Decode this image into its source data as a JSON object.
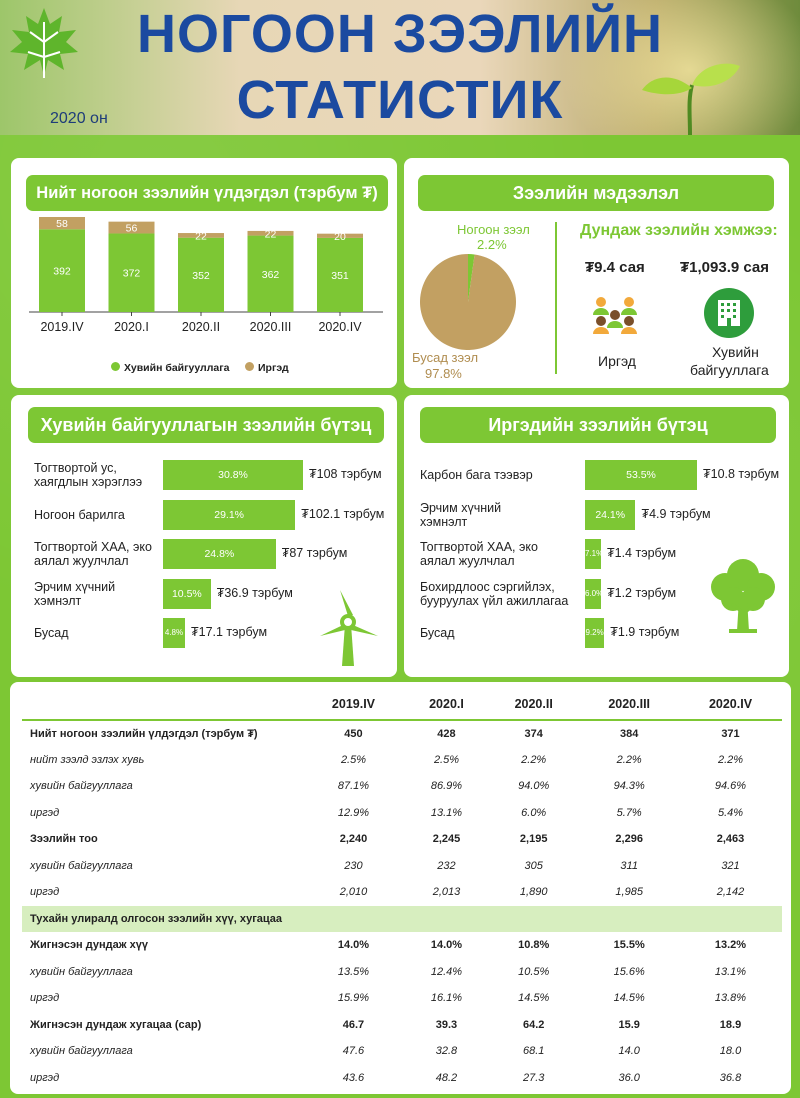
{
  "header": {
    "title_line1": "НОГООН ЗЭЭЛИЙН",
    "title_line2": "СТАТИСТИК",
    "year": "2020 он"
  },
  "colors": {
    "green": "#7dc734",
    "tan": "#c2a062",
    "title_blue": "#1b4aa0"
  },
  "icons": {
    "logo": "maple-leaf-icon",
    "sprout": "sprout-icon",
    "people": "people-icon",
    "building": "building-icon",
    "wind": "wind-turbine-icon",
    "tree": "tree-icon"
  },
  "balance": {
    "title": "Нийт ногоон зээлийн үлдэгдэл (тэрбум ₮)",
    "legend_business": "Хувийн байгууллага",
    "legend_citizen": "Иргэд"
  },
  "loan_info": {
    "title": "Зээлийн мэдээлэл",
    "green_label": "Ногоон зээл",
    "green_pct": "2.2%",
    "other_label": "Бусад зээл",
    "other_pct": "97.8%",
    "avg_title": "Дундаж зээлийн хэмжээ:",
    "citizen_amount": "₮9.4 сая",
    "business_amount": "₮1,093.9 сая",
    "citizen_label": "Иргэд",
    "business_label_1": "Хувийн",
    "business_label_2": "байгууллага"
  },
  "business_structure": {
    "title": "Хувийн байгууллагын зээлийн бүтэц",
    "items": [
      {
        "label1": "Тогтвортой ус,",
        "label2": "хаягдлын хэрэглээ",
        "pct": "30.8%",
        "share": 30.8,
        "amount": "₮108 тэрбум"
      },
      {
        "label1": "Ногоон барилга",
        "label2": "",
        "pct": "29.1%",
        "share": 29.1,
        "amount": "₮102.1 тэрбум"
      },
      {
        "label1": "Тогтвортой ХАА, эко",
        "label2": "аялал жуулчлал",
        "pct": "24.8%",
        "share": 24.8,
        "amount": "₮87 тэрбум"
      },
      {
        "label1": "Эрчим хүчний",
        "label2": "хэмнэлт",
        "pct": "10.5%",
        "share": 10.5,
        "amount": "₮36.9 тэрбум"
      },
      {
        "label1": "Бусад",
        "label2": "",
        "pct": "4.8%",
        "share": 4.8,
        "amount": "₮17.1 тэрбум"
      }
    ]
  },
  "citizen_structure": {
    "title": "Иргэдийн зээлийн бүтэц",
    "items": [
      {
        "label1": "Карбон бага тээвэр",
        "label2": "",
        "pct": "53.5%",
        "share": 53.5,
        "amount": "₮10.8 тэрбум"
      },
      {
        "label1": "Эрчим хүчний",
        "label2": "хэмнэлт",
        "pct": "24.1%",
        "share": 24.1,
        "amount": "₮4.9 тэрбум"
      },
      {
        "label1": "Тогтвортой ХАА, эко",
        "label2": "аялал жуулчлал",
        "pct": "7.1%",
        "share": 7.1,
        "amount": "₮1.4 тэрбум"
      },
      {
        "label1": "Бохирдлоос сэргийлэх,",
        "label2": "бууруулах үйл ажиллагаа",
        "pct": "6.0%",
        "share": 6.0,
        "amount": "₮1.2 тэрбум"
      },
      {
        "label1": "Бусад",
        "label2": "",
        "pct": "9.2%",
        "share": 9.2,
        "amount": "₮1.9 тэрбум"
      }
    ]
  },
  "table": {
    "columns": [
      "",
      "2019.IV",
      "2020.I",
      "2020.II",
      "2020.III",
      "2020.IV"
    ],
    "rows": [
      {
        "style": "b",
        "cells": [
          "Нийт ногоон зээлийн үлдэгдэл (тэрбум ₮)",
          "450",
          "428",
          "374",
          "384",
          "371"
        ]
      },
      {
        "style": "i",
        "cells": [
          "нийт зээлд эзлэх хувь",
          "2.5%",
          "2.5%",
          "2.2%",
          "2.2%",
          "2.2%"
        ]
      },
      {
        "style": "i",
        "cells": [
          "хувийн байгууллага",
          "87.1%",
          "86.9%",
          "94.0%",
          "94.3%",
          "94.6%"
        ]
      },
      {
        "style": "i",
        "cells": [
          "иргэд",
          "12.9%",
          "13.1%",
          "6.0%",
          "5.7%",
          "5.4%"
        ]
      },
      {
        "style": "b",
        "cells": [
          "Зээлийн тоо",
          "2,240",
          "2,245",
          "2,195",
          "2,296",
          "2,463"
        ]
      },
      {
        "style": "i",
        "cells": [
          "хувийн байгууллага",
          "230",
          "232",
          "305",
          "311",
          "321"
        ]
      },
      {
        "style": "i",
        "cells": [
          "иргэд",
          "2,010",
          "2,013",
          "1,890",
          "1,985",
          "2,142"
        ]
      },
      {
        "style": "sec",
        "cells": [
          "Тухайн улиралд олгосон зээлийн хүү, хугацаа"
        ]
      },
      {
        "style": "b",
        "cells": [
          "Жигнэсэн дундаж хүү",
          "14.0%",
          "14.0%",
          "10.8%",
          "15.5%",
          "13.2%"
        ]
      },
      {
        "style": "i",
        "cells": [
          "хувийн байгууллага",
          "13.5%",
          "12.4%",
          "10.5%",
          "15.6%",
          "13.1%"
        ]
      },
      {
        "style": "i",
        "cells": [
          "иргэд",
          "15.9%",
          "16.1%",
          "14.5%",
          "14.5%",
          "13.8%"
        ]
      },
      {
        "style": "b",
        "cells": [
          "Жигнэсэн дундаж хугацаа (сар)",
          "46.7",
          "39.3",
          "64.2",
          "15.9",
          "18.9"
        ]
      },
      {
        "style": "i",
        "cells": [
          "хувийн байгууллага",
          "47.6",
          "32.8",
          "68.1",
          "14.0",
          "18.0"
        ]
      },
      {
        "style": "i",
        "cells": [
          "иргэд",
          "43.6",
          "48.2",
          "27.3",
          "36.0",
          "36.8"
        ]
      }
    ]
  },
  "chart_data": [
    {
      "type": "bar",
      "stacked": true,
      "title": "Нийт ногоон зээлийн үлдэгдэл (тэрбум ₮)",
      "categories": [
        "2019.IV",
        "2020.I",
        "2020.II",
        "2020.III",
        "2020.IV"
      ],
      "series": [
        {
          "name": "Хувийн байгууллага",
          "values": [
            392,
            372,
            352,
            362,
            351
          ],
          "color": "#7dc734"
        },
        {
          "name": "Иргэд",
          "values": [
            58,
            56,
            22,
            22,
            20
          ],
          "color": "#c2a062"
        }
      ],
      "ylim": [
        0,
        450
      ],
      "legend": "bottom"
    },
    {
      "type": "pie",
      "labels": [
        "Ногоон зээл",
        "Бусад зээл"
      ],
      "values": [
        2.2,
        97.8
      ],
      "colors": [
        "#7dc734",
        "#c2a062"
      ]
    }
  ]
}
